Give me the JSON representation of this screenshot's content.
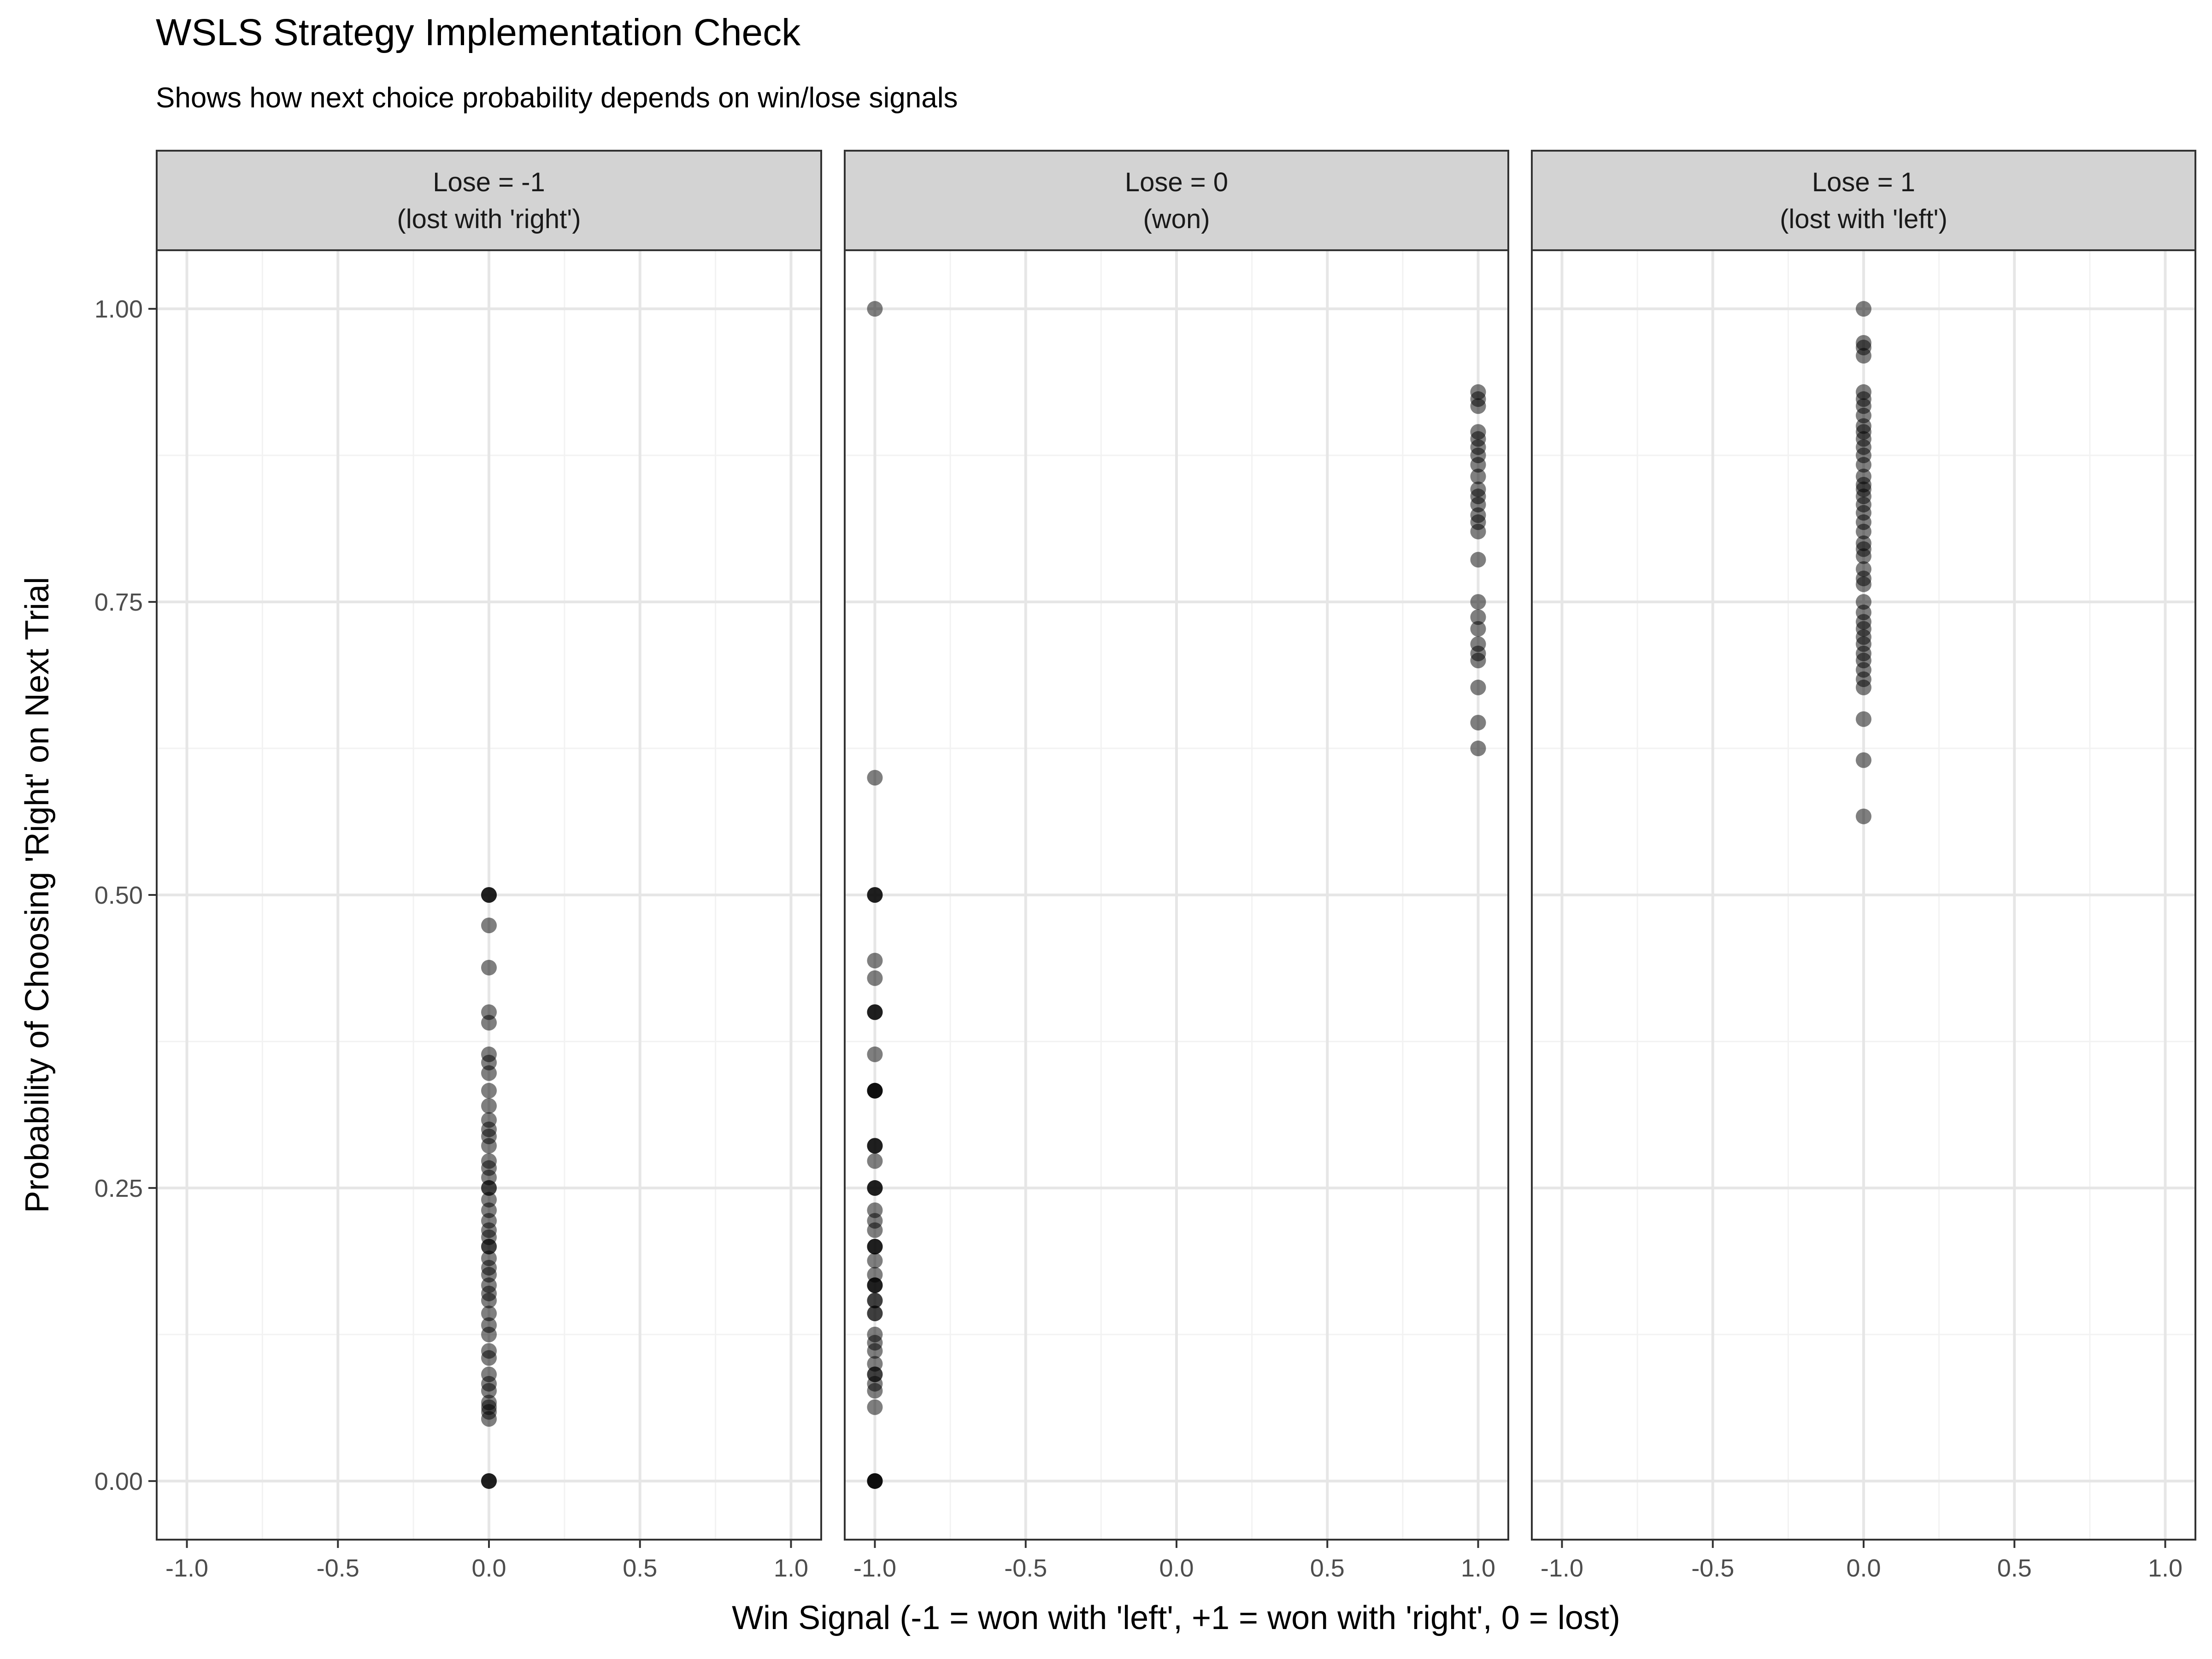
{
  "chart_data": {
    "type": "scatter",
    "title": "WSLS Strategy Implementation Check",
    "subtitle": "Shows how next choice probability depends on win/lose signals",
    "xlabel": "Win Signal (-1 = won with 'left', +1 = won with 'right', 0 = lost)",
    "ylabel": "Probability of Choosing 'Right' on Next Trial",
    "xlim": [
      -1.1,
      1.1
    ],
    "ylim": [
      -0.05,
      1.05
    ],
    "x_ticks": [
      -1.0,
      -0.5,
      0.0,
      0.5,
      1.0
    ],
    "x_tick_labels": [
      "-1.0",
      "-0.5",
      "0.0",
      "0.5",
      "1.0"
    ],
    "y_ticks": [
      0,
      0.25,
      0.5,
      0.75,
      1.0
    ],
    "y_tick_labels": [
      "0.00",
      "0.25",
      "0.50",
      "0.75",
      "1.00"
    ],
    "grid": true,
    "point_color": "#000000",
    "point_opacity": 0.5,
    "strip_color": "#d3d3d3",
    "facets": [
      {
        "label_line1": "Lose = -1",
        "label_line2": "(lost with 'right')",
        "points": [
          {
            "x": 0,
            "y": 0.5
          },
          {
            "x": 0,
            "y": 0.5
          },
          {
            "x": 0,
            "y": 0.5
          },
          {
            "x": 0,
            "y": 0.474
          },
          {
            "x": 0,
            "y": 0.438
          },
          {
            "x": 0,
            "y": 0.4
          },
          {
            "x": 0,
            "y": 0.391
          },
          {
            "x": 0,
            "y": 0.364
          },
          {
            "x": 0,
            "y": 0.357
          },
          {
            "x": 0,
            "y": 0.348
          },
          {
            "x": 0,
            "y": 0.333
          },
          {
            "x": 0,
            "y": 0.32
          },
          {
            "x": 0,
            "y": 0.308
          },
          {
            "x": 0,
            "y": 0.3
          },
          {
            "x": 0,
            "y": 0.294
          },
          {
            "x": 0,
            "y": 0.286
          },
          {
            "x": 0,
            "y": 0.273
          },
          {
            "x": 0,
            "y": 0.267
          },
          {
            "x": 0,
            "y": 0.259
          },
          {
            "x": 0,
            "y": 0.25
          },
          {
            "x": 0,
            "y": 0.25
          },
          {
            "x": 0,
            "y": 0.24
          },
          {
            "x": 0,
            "y": 0.231
          },
          {
            "x": 0,
            "y": 0.222
          },
          {
            "x": 0,
            "y": 0.214
          },
          {
            "x": 0,
            "y": 0.208
          },
          {
            "x": 0,
            "y": 0.2
          },
          {
            "x": 0,
            "y": 0.2
          },
          {
            "x": 0,
            "y": 0.19
          },
          {
            "x": 0,
            "y": 0.182
          },
          {
            "x": 0,
            "y": 0.176
          },
          {
            "x": 0,
            "y": 0.167
          },
          {
            "x": 0,
            "y": 0.16
          },
          {
            "x": 0,
            "y": 0.154
          },
          {
            "x": 0,
            "y": 0.143
          },
          {
            "x": 0,
            "y": 0.133
          },
          {
            "x": 0,
            "y": 0.125
          },
          {
            "x": 0,
            "y": 0.111
          },
          {
            "x": 0,
            "y": 0.105
          },
          {
            "x": 0,
            "y": 0.091
          },
          {
            "x": 0,
            "y": 0.083
          },
          {
            "x": 0,
            "y": 0.077
          },
          {
            "x": 0,
            "y": 0.067
          },
          {
            "x": 0,
            "y": 0.063
          },
          {
            "x": 0,
            "y": 0.059
          },
          {
            "x": 0,
            "y": 0.053
          },
          {
            "x": 0,
            "y": 0
          },
          {
            "x": 0,
            "y": 0
          },
          {
            "x": 0,
            "y": 0
          }
        ]
      },
      {
        "label_line1": "Lose = 0",
        "label_line2": "(won)",
        "points": [
          {
            "x": -1,
            "y": 1.0
          },
          {
            "x": -1,
            "y": 0.6
          },
          {
            "x": -1,
            "y": 0.5
          },
          {
            "x": -1,
            "y": 0.5
          },
          {
            "x": -1,
            "y": 0.5
          },
          {
            "x": -1,
            "y": 0.444
          },
          {
            "x": -1,
            "y": 0.429
          },
          {
            "x": -1,
            "y": 0.4
          },
          {
            "x": -1,
            "y": 0.4
          },
          {
            "x": -1,
            "y": 0.4
          },
          {
            "x": -1,
            "y": 0.364
          },
          {
            "x": -1,
            "y": 0.333
          },
          {
            "x": -1,
            "y": 0.333
          },
          {
            "x": -1,
            "y": 0.333
          },
          {
            "x": -1,
            "y": 0.333
          },
          {
            "x": -1,
            "y": 0.286
          },
          {
            "x": -1,
            "y": 0.286
          },
          {
            "x": -1,
            "y": 0.286
          },
          {
            "x": -1,
            "y": 0.273
          },
          {
            "x": -1,
            "y": 0.25
          },
          {
            "x": -1,
            "y": 0.25
          },
          {
            "x": -1,
            "y": 0.25
          },
          {
            "x": -1,
            "y": 0.231
          },
          {
            "x": -1,
            "y": 0.222
          },
          {
            "x": -1,
            "y": 0.214
          },
          {
            "x": -1,
            "y": 0.2
          },
          {
            "x": -1,
            "y": 0.2
          },
          {
            "x": -1,
            "y": 0.2
          },
          {
            "x": -1,
            "y": 0.188
          },
          {
            "x": -1,
            "y": 0.176
          },
          {
            "x": -1,
            "y": 0.167
          },
          {
            "x": -1,
            "y": 0.167
          },
          {
            "x": -1,
            "y": 0.167
          },
          {
            "x": -1,
            "y": 0.154
          },
          {
            "x": -1,
            "y": 0.154
          },
          {
            "x": -1,
            "y": 0.143
          },
          {
            "x": -1,
            "y": 0.143
          },
          {
            "x": -1,
            "y": 0.125
          },
          {
            "x": -1,
            "y": 0.118
          },
          {
            "x": -1,
            "y": 0.111
          },
          {
            "x": -1,
            "y": 0.1
          },
          {
            "x": -1,
            "y": 0.091
          },
          {
            "x": -1,
            "y": 0.091
          },
          {
            "x": -1,
            "y": 0.083
          },
          {
            "x": -1,
            "y": 0.077
          },
          {
            "x": -1,
            "y": 0.063
          },
          {
            "x": -1,
            "y": 0
          },
          {
            "x": -1,
            "y": 0
          },
          {
            "x": -1,
            "y": 0
          },
          {
            "x": -1,
            "y": 0
          },
          {
            "x": 1,
            "y": 0.929
          },
          {
            "x": 1,
            "y": 0.923
          },
          {
            "x": 1,
            "y": 0.917
          },
          {
            "x": 1,
            "y": 0.895
          },
          {
            "x": 1,
            "y": 0.889
          },
          {
            "x": 1,
            "y": 0.882
          },
          {
            "x": 1,
            "y": 0.875
          },
          {
            "x": 1,
            "y": 0.867
          },
          {
            "x": 1,
            "y": 0.857
          },
          {
            "x": 1,
            "y": 0.846
          },
          {
            "x": 1,
            "y": 0.84
          },
          {
            "x": 1,
            "y": 0.833
          },
          {
            "x": 1,
            "y": 0.824
          },
          {
            "x": 1,
            "y": 0.818
          },
          {
            "x": 1,
            "y": 0.81
          },
          {
            "x": 1,
            "y": 0.786
          },
          {
            "x": 1,
            "y": 0.75
          },
          {
            "x": 1,
            "y": 0.737
          },
          {
            "x": 1,
            "y": 0.727
          },
          {
            "x": 1,
            "y": 0.714
          },
          {
            "x": 1,
            "y": 0.706
          },
          {
            "x": 1,
            "y": 0.7
          },
          {
            "x": 1,
            "y": 0.677
          },
          {
            "x": 1,
            "y": 0.647
          },
          {
            "x": 1,
            "y": 0.625
          }
        ]
      },
      {
        "label_line1": "Lose = 1",
        "label_line2": "(lost with 'left')",
        "points": [
          {
            "x": 0,
            "y": 1.0
          },
          {
            "x": 0,
            "y": 0.971
          },
          {
            "x": 0,
            "y": 0.967
          },
          {
            "x": 0,
            "y": 0.96
          },
          {
            "x": 0,
            "y": 0.929
          },
          {
            "x": 0,
            "y": 0.923
          },
          {
            "x": 0,
            "y": 0.917
          },
          {
            "x": 0,
            "y": 0.909
          },
          {
            "x": 0,
            "y": 0.9
          },
          {
            "x": 0,
            "y": 0.895
          },
          {
            "x": 0,
            "y": 0.889
          },
          {
            "x": 0,
            "y": 0.882
          },
          {
            "x": 0,
            "y": 0.875
          },
          {
            "x": 0,
            "y": 0.867
          },
          {
            "x": 0,
            "y": 0.857
          },
          {
            "x": 0,
            "y": 0.85
          },
          {
            "x": 0,
            "y": 0.846
          },
          {
            "x": 0,
            "y": 0.84
          },
          {
            "x": 0,
            "y": 0.833
          },
          {
            "x": 0,
            "y": 0.826
          },
          {
            "x": 0,
            "y": 0.818
          },
          {
            "x": 0,
            "y": 0.81
          },
          {
            "x": 0,
            "y": 0.8
          },
          {
            "x": 0,
            "y": 0.795
          },
          {
            "x": 0,
            "y": 0.789
          },
          {
            "x": 0,
            "y": 0.778
          },
          {
            "x": 0,
            "y": 0.77
          },
          {
            "x": 0,
            "y": 0.765
          },
          {
            "x": 0,
            "y": 0.75
          },
          {
            "x": 0,
            "y": 0.741
          },
          {
            "x": 0,
            "y": 0.733
          },
          {
            "x": 0,
            "y": 0.727
          },
          {
            "x": 0,
            "y": 0.72
          },
          {
            "x": 0,
            "y": 0.714
          },
          {
            "x": 0,
            "y": 0.706
          },
          {
            "x": 0,
            "y": 0.7
          },
          {
            "x": 0,
            "y": 0.692
          },
          {
            "x": 0,
            "y": 0.684
          },
          {
            "x": 0,
            "y": 0.677
          },
          {
            "x": 0,
            "y": 0.65
          },
          {
            "x": 0,
            "y": 0.615
          },
          {
            "x": 0,
            "y": 0.567
          }
        ]
      }
    ]
  }
}
